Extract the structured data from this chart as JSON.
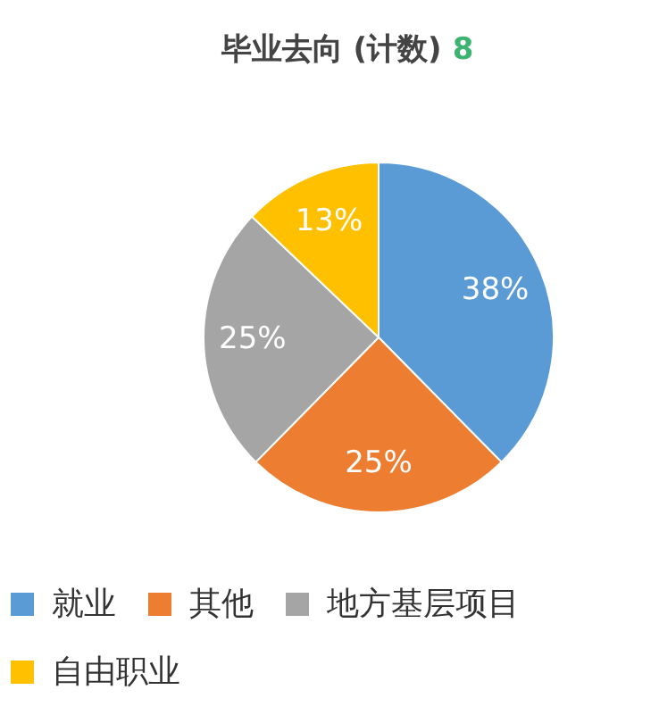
{
  "chart_data": {
    "type": "pie",
    "title": "毕业去向 (计数)",
    "annotations": [
      "8"
    ],
    "categories": [
      "就业",
      "其他",
      "地方基层项目",
      "自由职业"
    ],
    "values": [
      38,
      25,
      25,
      13
    ],
    "colors": [
      "#5b9bd5",
      "#ed7d31",
      "#a5a5a5",
      "#ffc000"
    ],
    "value_labels": [
      "38%",
      "25%",
      "25%",
      "13%"
    ],
    "legend": "bottom"
  }
}
